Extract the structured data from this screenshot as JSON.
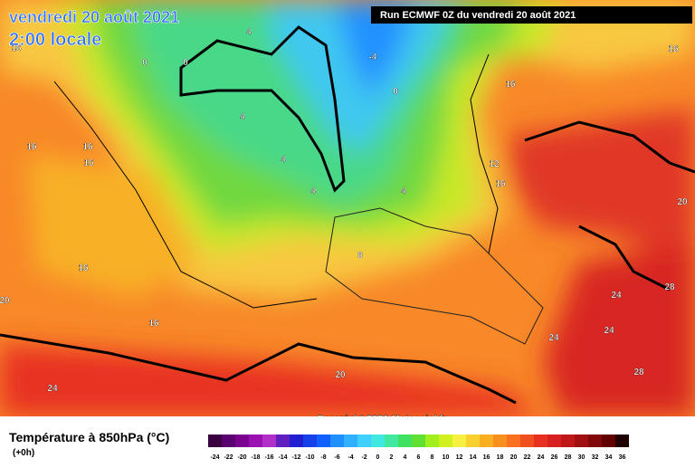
{
  "header": {
    "date": "vendredi 20 août 2021",
    "time": "2:00 locale",
    "run": "Run ECMWF 0Z du vendredi 20 août 2021",
    "copyright": "Copyright 2021 Meteociel.fr"
  },
  "legend": {
    "title": "Température à 850hPa (°C)",
    "step": "(+0h)",
    "ticks": [
      -24,
      -22,
      -20,
      -18,
      -16,
      -14,
      -12,
      -10,
      -8,
      -6,
      -4,
      -2,
      0,
      2,
      4,
      6,
      8,
      10,
      12,
      14,
      16,
      18,
      20,
      22,
      24,
      26,
      28,
      30,
      32,
      34,
      36
    ],
    "colors": [
      "#3a0040",
      "#5a0070",
      "#7a0090",
      "#9a10b0",
      "#b030c8",
      "#6020c0",
      "#2020d0",
      "#1840e8",
      "#1060ff",
      "#2090ff",
      "#30b0ff",
      "#40d0ff",
      "#40e8e0",
      "#40e8a0",
      "#40e060",
      "#60e030",
      "#a0f020",
      "#d0f020",
      "#f8f040",
      "#f8d030",
      "#f8b020",
      "#f89020",
      "#f87020",
      "#f05020",
      "#e83020",
      "#d82020",
      "#c01818",
      "#a01010",
      "#800808",
      "#600000",
      "#200000"
    ]
  },
  "map": {
    "contour_labels": [
      16,
      4,
      0,
      0,
      4,
      -4,
      0,
      16,
      16,
      16,
      16,
      16,
      4,
      4,
      4,
      12,
      16,
      20,
      16,
      8,
      20,
      16,
      24,
      28,
      24,
      24,
      20,
      24,
      28
    ]
  }
}
